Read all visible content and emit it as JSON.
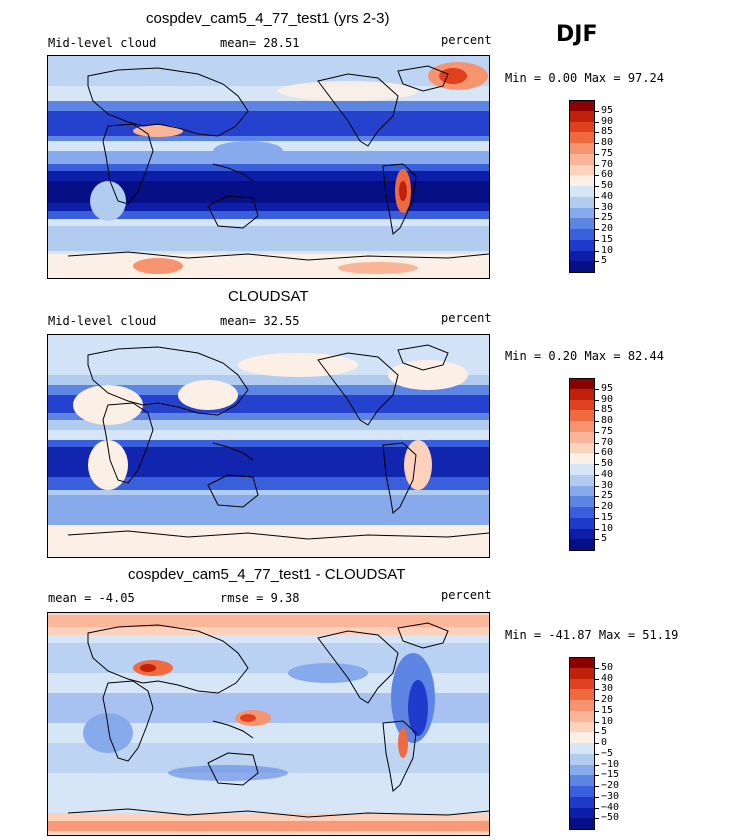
{
  "season": "DJF",
  "panels": [
    {
      "title": "cospdev_cam5_4_77_test1 (yrs 2-3)",
      "left_label": "Mid-level cloud",
      "mid_label": "mean=  28.51",
      "right_label": "percent",
      "minmax": "Min =   0.00 Max =  97.24",
      "levels": [
        "95",
        "90",
        "85",
        "80",
        "75",
        "70",
        "60",
        "50",
        "40",
        "30",
        "25",
        "20",
        "15",
        "10",
        "5"
      ],
      "colors": [
        "#8b0000",
        "#c1200b",
        "#e0401e",
        "#ef6a3f",
        "#f79470",
        "#fab497",
        "#fdd2bd",
        "#fcefe6",
        "#d6e6f7",
        "#b2ccf0",
        "#87aaec",
        "#5d85e3",
        "#3a5fdc",
        "#1f3bcc",
        "#0d1fa8",
        "#060f86"
      ]
    },
    {
      "title": "CLOUDSAT",
      "left_label": "Mid-level cloud",
      "mid_label": "mean=  32.55",
      "right_label": "percent",
      "minmax": "Min =   0.20 Max =  82.44",
      "levels": [
        "95",
        "90",
        "85",
        "80",
        "75",
        "70",
        "60",
        "50",
        "40",
        "30",
        "25",
        "20",
        "15",
        "10",
        "5"
      ],
      "colors": [
        "#8b0000",
        "#c1200b",
        "#e0401e",
        "#ef6a3f",
        "#f79470",
        "#fab497",
        "#fdd2bd",
        "#fcefe6",
        "#d6e6f7",
        "#b2ccf0",
        "#87aaec",
        "#5d85e3",
        "#3a5fdc",
        "#1f3bcc",
        "#0d1fa8",
        "#060f86"
      ]
    },
    {
      "title": "cospdev_cam5_4_77_test1 - CLOUDSAT",
      "left_label": "mean =   -4.05",
      "mid_label": "rmse =    9.38",
      "right_label": "percent",
      "minmax": "Min = -41.87 Max =  51.19",
      "levels": [
        "50",
        "40",
        "30",
        "20",
        "15",
        "10",
        "5",
        "0",
        "−5",
        "−10",
        "−15",
        "−20",
        "−30",
        "−40",
        "−50"
      ],
      "colors": [
        "#8b0000",
        "#c1200b",
        "#e0401e",
        "#ef6a3f",
        "#f79470",
        "#fab497",
        "#fdd2bd",
        "#fcefe6",
        "#d6e6f7",
        "#b2ccf0",
        "#87aaec",
        "#5d85e3",
        "#3a5fdc",
        "#1f3bcc",
        "#0d1fa8",
        "#060f86"
      ]
    }
  ]
}
